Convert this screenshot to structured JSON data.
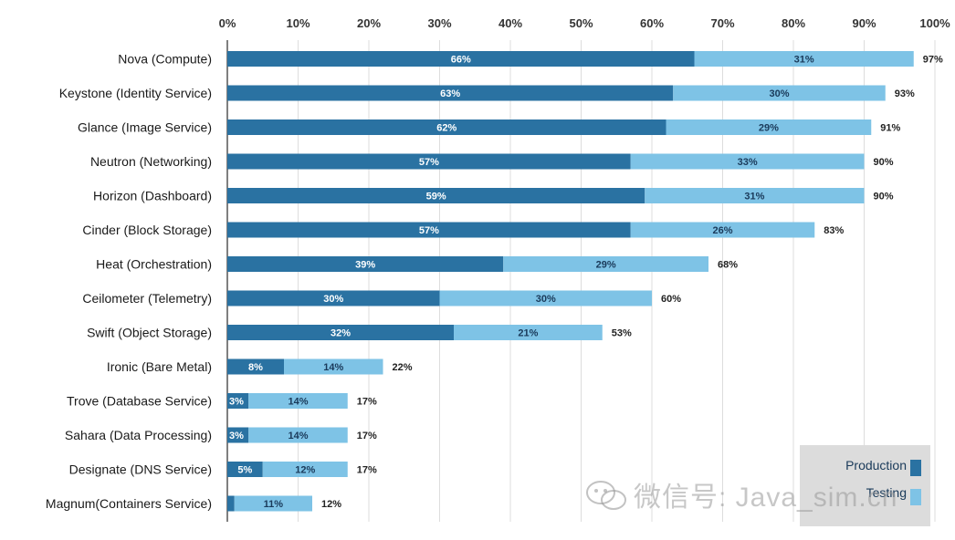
{
  "chart_data": {
    "type": "bar",
    "orientation": "horizontal",
    "stacked": true,
    "categories": [
      "Nova (Compute)",
      "Keystone (Identity Service)",
      "Glance (Image Service)",
      "Neutron (Networking)",
      "Horizon (Dashboard)",
      "Cinder (Block Storage)",
      "Heat (Orchestration)",
      "Ceilometer (Telemetry)",
      "Swift (Object Storage)",
      "Ironic (Bare Metal)",
      "Trove (Database Service)",
      "Sahara (Data Processing)",
      "Designate (DNS Service)",
      "Magnum(Containers Service)"
    ],
    "series": [
      {
        "name": "Production",
        "color": "#2a72a2",
        "values": [
          66,
          63,
          62,
          57,
          59,
          57,
          39,
          30,
          32,
          8,
          3,
          3,
          5,
          1
        ],
        "labels": [
          "66%",
          "63%",
          "62%",
          "57%",
          "59%",
          "57%",
          "39%",
          "30%",
          "32%",
          "8%",
          "3%",
          "3%",
          "5%",
          ""
        ]
      },
      {
        "name": "Testing",
        "color": "#7ec3e6",
        "values": [
          31,
          30,
          29,
          33,
          31,
          26,
          29,
          30,
          21,
          14,
          14,
          14,
          12,
          11
        ],
        "labels": [
          "31%",
          "30%",
          "29%",
          "33%",
          "31%",
          "26%",
          "29%",
          "30%",
          "21%",
          "14%",
          "14%",
          "14%",
          "12%",
          "11%"
        ]
      }
    ],
    "totals": [
      97,
      93,
      91,
      90,
      90,
      83,
      68,
      60,
      53,
      22,
      17,
      17,
      17,
      12
    ],
    "total_labels": [
      "97%",
      "93%",
      "91%",
      "90%",
      "90%",
      "83%",
      "68%",
      "60%",
      "53%",
      "22%",
      "17%",
      "17%",
      "17%",
      "12%"
    ],
    "xlim": [
      0,
      100
    ],
    "xticks": [
      "0%",
      "10%",
      "20%",
      "30%",
      "40%",
      "50%",
      "60%",
      "70%",
      "80%",
      "90%",
      "100%"
    ],
    "grid": true,
    "legend": "bottom-right"
  },
  "legend": {
    "production": "Production",
    "testing": "Testing"
  },
  "watermark": "微信号: Java_sim.cn"
}
